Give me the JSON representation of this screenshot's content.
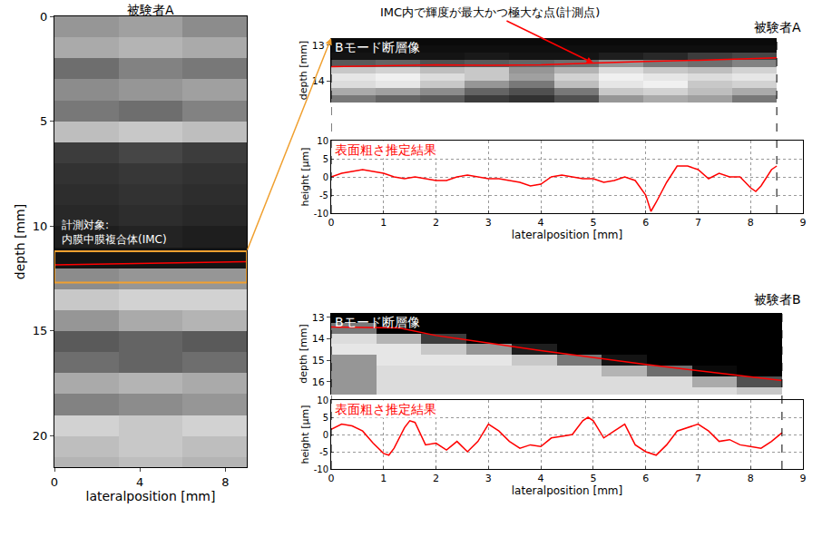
{
  "chart_data": [
    {
      "type": "heatmap",
      "title": "被験者A",
      "x_label": "lateralposition [mm]",
      "y_label": "depth [mm]",
      "xlim": [
        0,
        9
      ],
      "ylim": [
        21.5,
        0
      ],
      "xticks": [
        0,
        4,
        8
      ],
      "yticks": [
        0,
        5,
        10,
        15,
        20
      ],
      "annotation": [
        "計測対象:",
        "内膜中膜複合体(IMC)"
      ],
      "roi": {
        "color": "#f0a030",
        "depth": [
          11.2,
          12.7
        ]
      },
      "brightness_range": [
        0,
        255
      ],
      "x": [
        1.5,
        4.5,
        7.5
      ],
      "depth": [
        0.5,
        1.5,
        2.5,
        3.5,
        4.5,
        5.5,
        6.5,
        7.5,
        8.5,
        9.5,
        10.5,
        11.5,
        12.5,
        13.5,
        14.5,
        15.5,
        16.5,
        17.5,
        18.5,
        19.5,
        20.5,
        21.5
      ],
      "brightness": [
        [
          150,
          160,
          140
        ],
        [
          170,
          180,
          170
        ],
        [
          110,
          130,
          120
        ],
        [
          140,
          150,
          160
        ],
        [
          120,
          110,
          130
        ],
        [
          190,
          200,
          190
        ],
        [
          60,
          70,
          60
        ],
        [
          50,
          55,
          50
        ],
        [
          45,
          50,
          45
        ],
        [
          40,
          45,
          40
        ],
        [
          30,
          35,
          30
        ],
        [
          20,
          20,
          20
        ],
        [
          140,
          150,
          150
        ],
        [
          200,
          210,
          210
        ],
        [
          150,
          170,
          180
        ],
        [
          90,
          100,
          90
        ],
        [
          110,
          100,
          110
        ],
        [
          170,
          180,
          170
        ],
        [
          130,
          140,
          150
        ],
        [
          210,
          200,
          210
        ],
        [
          190,
          200,
          190
        ],
        [
          180,
          190,
          180
        ]
      ],
      "measurement_line": {
        "color": "#ff0000",
        "x": [
          0,
          9
        ],
        "depth": [
          11.85,
          11.7
        ]
      }
    },
    {
      "type": "heatmap",
      "title": "被験者A",
      "label": "Bモード断層像",
      "y_label": "depth [mm]",
      "ylim": [
        14.6,
        12.8
      ],
      "yticks": [
        13,
        14
      ],
      "tick_labels": "y",
      "x_extent": [
        0,
        8.5
      ],
      "annotation": "IMC内で輝度が最大かつ極大な点(計測点)",
      "brightness_range": [
        0,
        255
      ],
      "x": [
        0.425,
        1.275,
        2.125,
        2.975,
        3.825,
        4.675,
        5.525,
        6.375,
        7.225,
        8.075
      ],
      "depth": [
        12.9,
        13.1,
        13.3,
        13.5,
        13.7,
        13.9,
        14.1,
        14.3,
        14.5
      ],
      "brightness": [
        [
          10,
          10,
          10,
          10,
          10,
          10,
          10,
          10,
          10,
          10
        ],
        [
          15,
          15,
          15,
          15,
          15,
          15,
          15,
          15,
          15,
          15
        ],
        [
          20,
          20,
          20,
          25,
          20,
          20,
          30,
          40,
          60,
          70
        ],
        [
          90,
          100,
          80,
          90,
          100,
          110,
          150,
          120,
          110,
          130
        ],
        [
          200,
          210,
          190,
          200,
          150,
          180,
          220,
          200,
          190,
          210
        ],
        [
          230,
          240,
          220,
          200,
          160,
          210,
          240,
          230,
          220,
          230
        ],
        [
          220,
          230,
          200,
          150,
          120,
          190,
          230,
          240,
          200,
          210
        ],
        [
          170,
          160,
          140,
          100,
          80,
          120,
          200,
          210,
          190,
          170
        ],
        [
          120,
          100,
          90,
          60,
          50,
          80,
          150,
          170,
          160,
          120
        ]
      ],
      "measurement_line": {
        "color": "#ff0000",
        "x": [
          0,
          1,
          2,
          3,
          4,
          5,
          6,
          7,
          8,
          8.5
        ],
        "depth": [
          13.6,
          13.58,
          13.55,
          13.56,
          13.55,
          13.5,
          13.45,
          13.42,
          13.38,
          13.35
        ]
      }
    },
    {
      "type": "line",
      "label": "表面粗さ推定結果",
      "x_label": "lateralposition [mm]",
      "y_label": "height [μm]",
      "xlim": [
        0,
        9
      ],
      "ylim": [
        -10,
        10
      ],
      "xticks": [
        0,
        1,
        2,
        3,
        4,
        5,
        6,
        7,
        8,
        9
      ],
      "yticks": [
        -10,
        -5,
        0,
        5,
        10
      ],
      "grid": true,
      "color": "#ff0000",
      "x": [
        0,
        0.2,
        0.4,
        0.6,
        0.8,
        1.0,
        1.2,
        1.4,
        1.6,
        1.8,
        2.0,
        2.2,
        2.4,
        2.6,
        2.8,
        3.0,
        3.2,
        3.4,
        3.6,
        3.8,
        4.0,
        4.2,
        4.4,
        4.6,
        4.8,
        5.0,
        5.2,
        5.4,
        5.6,
        5.8,
        6.0,
        6.1,
        6.2,
        6.4,
        6.6,
        6.8,
        7.0,
        7.2,
        7.4,
        7.6,
        7.8,
        8.0,
        8.1,
        8.2,
        8.4,
        8.5
      ],
      "values": [
        0,
        1,
        1.5,
        2,
        1.5,
        1,
        0,
        -0.5,
        0,
        -0.5,
        -1,
        -1,
        0,
        0.5,
        0,
        -0.5,
        -0.5,
        -1,
        -1.5,
        -2.5,
        -2,
        0,
        0.5,
        0,
        -0.5,
        -0.5,
        -1.5,
        -1,
        0,
        -1,
        -5,
        -9.5,
        -7,
        -1.5,
        3,
        3,
        2,
        -0.5,
        1,
        0,
        0,
        -3,
        -4,
        -2.5,
        2,
        3
      ]
    },
    {
      "type": "heatmap",
      "title": "被験者B",
      "label": "Bモード断層像",
      "y_label": "depth [mm]",
      "ylim": [
        16.6,
        12.8
      ],
      "yticks": [
        13,
        14,
        15,
        16
      ],
      "tick_labels": "y",
      "x_extent": [
        0,
        8.6
      ],
      "brightness_range": [
        0,
        255
      ],
      "x": [
        0.43,
        1.29,
        2.15,
        3.01,
        3.87,
        4.73,
        5.59,
        6.45,
        7.31,
        8.17
      ],
      "depth": [
        13,
        13.5,
        14,
        14.5,
        15,
        15.5,
        16,
        16.5
      ],
      "brightness": [
        [
          0,
          0,
          0,
          0,
          0,
          0,
          0,
          0,
          0,
          0
        ],
        [
          120,
          0,
          0,
          0,
          0,
          0,
          0,
          0,
          0,
          0
        ],
        [
          220,
          180,
          60,
          0,
          0,
          0,
          0,
          0,
          0,
          0
        ],
        [
          230,
          230,
          200,
          150,
          30,
          0,
          0,
          0,
          0,
          0
        ],
        [
          150,
          230,
          230,
          230,
          200,
          120,
          20,
          0,
          0,
          0
        ],
        [
          150,
          220,
          220,
          220,
          220,
          220,
          180,
          110,
          10,
          0
        ],
        [
          150,
          220,
          220,
          220,
          220,
          220,
          220,
          220,
          170,
          80
        ],
        [
          150,
          220,
          220,
          220,
          220,
          220,
          220,
          220,
          220,
          200
        ]
      ],
      "measurement_line": {
        "color": "#ff0000",
        "x": [
          0,
          1.3,
          2,
          4,
          6,
          8.6
        ],
        "depth": [
          13.45,
          13.5,
          13.85,
          14.55,
          15.2,
          15.95
        ]
      }
    },
    {
      "type": "line",
      "label": "表面粗さ推定結果",
      "x_label": "lateralposition [mm]",
      "y_label": "height [μm]",
      "xlim": [
        0,
        9
      ],
      "ylim": [
        -10,
        10
      ],
      "xticks": [
        0,
        1,
        2,
        3,
        4,
        5,
        6,
        7,
        8,
        9
      ],
      "yticks": [
        -10,
        -5,
        0,
        5,
        10
      ],
      "grid": true,
      "color": "#ff0000",
      "x": [
        0,
        0.2,
        0.4,
        0.6,
        0.8,
        1.0,
        1.1,
        1.2,
        1.4,
        1.5,
        1.6,
        1.8,
        2.0,
        2.2,
        2.4,
        2.6,
        2.8,
        3.0,
        3.2,
        3.4,
        3.6,
        3.8,
        4.0,
        4.2,
        4.4,
        4.6,
        4.8,
        4.9,
        5.0,
        5.2,
        5.4,
        5.6,
        5.8,
        6.0,
        6.2,
        6.4,
        6.6,
        6.8,
        7.0,
        7.2,
        7.4,
        7.6,
        7.8,
        8.0,
        8.2,
        8.4,
        8.6
      ],
      "values": [
        1.5,
        3,
        2.5,
        1,
        -2.5,
        -5.5,
        -6,
        -4,
        2,
        4,
        3.5,
        -3,
        -2.5,
        -4.5,
        -2,
        -5,
        -2,
        3,
        1,
        -2,
        -4,
        -3,
        -3.5,
        -1,
        -0.5,
        0,
        4,
        5,
        4,
        -1,
        1,
        3,
        -3,
        -5,
        -6,
        -3,
        1,
        2,
        3,
        1,
        -2,
        -1.5,
        -3,
        -3.5,
        -4,
        -2,
        0.5
      ]
    }
  ]
}
